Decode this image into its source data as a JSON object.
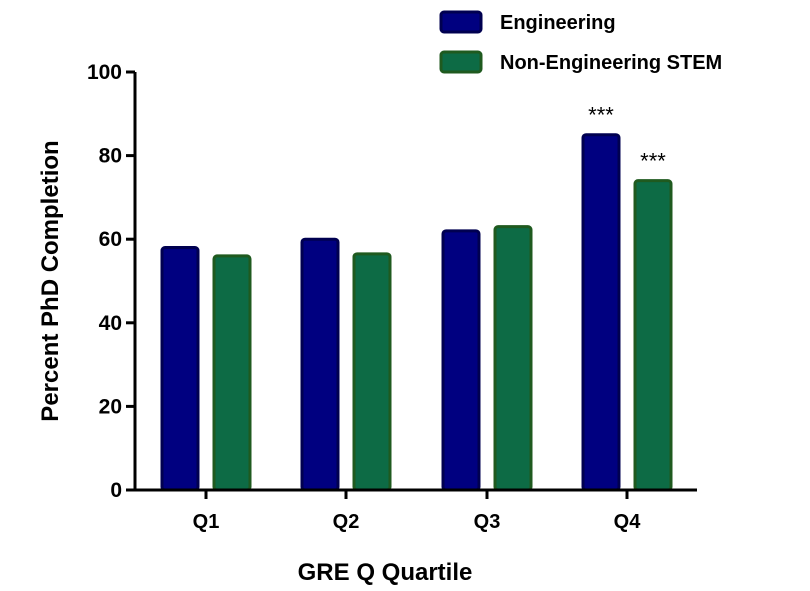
{
  "chart_data": {
    "type": "bar",
    "title": "",
    "xlabel": "GRE Q Quartile",
    "ylabel": "Percent PhD  Completion",
    "ylim": [
      0,
      100
    ],
    "yticks": [
      0,
      20,
      40,
      60,
      80,
      100
    ],
    "categories": [
      "Q1",
      "Q2",
      "Q3",
      "Q4"
    ],
    "series": [
      {
        "name": "Engineering",
        "values": [
          58,
          60,
          62,
          85
        ],
        "color": "#000080",
        "edge": "#000050"
      },
      {
        "name": "Non-Engineering STEM",
        "values": [
          56,
          56.5,
          63,
          74
        ],
        "color": "#0d6b45",
        "edge": "#1f5a1f"
      }
    ],
    "annotations": [
      {
        "category": "Q4",
        "series": "Engineering",
        "text": "***"
      },
      {
        "category": "Q4",
        "series": "Non-Engineering STEM",
        "text": "***"
      }
    ],
    "grid": false,
    "legend_position": "top-right"
  }
}
